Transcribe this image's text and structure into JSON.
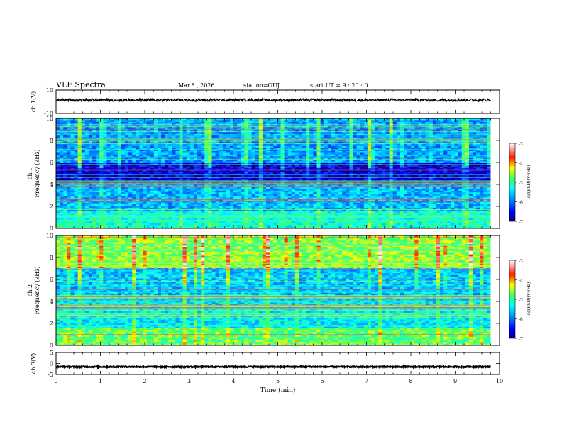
{
  "header": {
    "title": "VLF Spectra",
    "date": "Mar.8 , 2026",
    "station": "station=OUJ",
    "start": "start UT = 9 : 20 : 0"
  },
  "chart_data": [
    {
      "type": "line",
      "name": "ch1-waveform",
      "ylabel": "ch.1(V)",
      "ylim": [
        -10,
        10
      ],
      "yticks": [
        "10",
        "-10"
      ],
      "xlim": [
        0,
        10
      ],
      "trace": {
        "x_start": 0,
        "x_end": 9.8,
        "center": 1.5,
        "amplitude": 1.2
      }
    },
    {
      "type": "heatmap",
      "name": "ch1-spectrogram",
      "ylabel": "ch.1\nFrequency (kHz)",
      "ylim": [
        0,
        10
      ],
      "yticks": [
        "0",
        "2",
        "4",
        "6",
        "8",
        "10"
      ],
      "xlim": [
        0,
        10
      ],
      "data_x_end": 9.8,
      "colorbar": {
        "label": "log(PSD)(V²/Hz)",
        "range": [
          -7,
          -3
        ],
        "ticks": [
          "-3",
          "-4",
          "-5",
          "-6",
          "-7"
        ]
      }
    },
    {
      "type": "heatmap",
      "name": "ch2-spectrogram",
      "ylabel": "ch.2\nFrequency (kHz)",
      "ylim": [
        0,
        10
      ],
      "yticks": [
        "0",
        "2",
        "4",
        "6",
        "8",
        "10"
      ],
      "xlim": [
        0,
        10
      ],
      "data_x_end": 9.8,
      "colorbar": {
        "label": "log(PSD)(V²/Hz)",
        "range": [
          -7,
          -3
        ],
        "ticks": [
          "-3",
          "-4",
          "-5",
          "-6",
          "-7"
        ]
      }
    },
    {
      "type": "line",
      "name": "ch3-waveform",
      "ylabel": "ch.3(V)",
      "ylim": [
        -5,
        5
      ],
      "yticks": [
        "5",
        "0",
        "-5"
      ],
      "xlim": [
        0,
        10
      ],
      "xlabel": "Time (min)",
      "xticks": [
        "0",
        "1",
        "2",
        "3",
        "4",
        "5",
        "6",
        "7",
        "8",
        "9",
        "10"
      ],
      "trace": {
        "x_start": 0,
        "x_end": 9.8,
        "center": -1.5,
        "amplitude": 0.25
      }
    }
  ]
}
